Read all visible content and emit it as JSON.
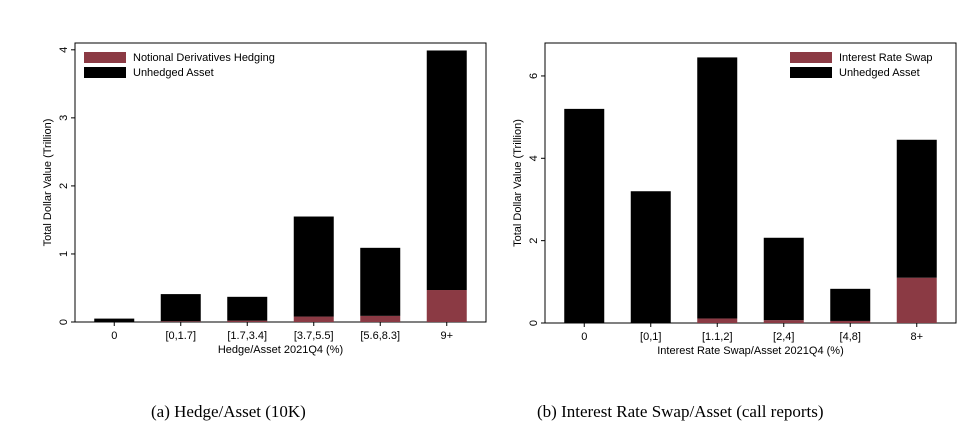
{
  "chart_data": [
    {
      "type": "bar",
      "stacked": true,
      "caption": "(a) Hedge/Asset (10K)",
      "xlabel": "Hedge/Asset 2021Q4 (%)",
      "ylabel": "Total Dollar Value (Trillion)",
      "ylim": [
        0,
        4.1
      ],
      "yticks": [
        0,
        1,
        2,
        3,
        4
      ],
      "grid": false,
      "legend_position": "top-left",
      "categories": [
        "0",
        "[0,1.7]",
        "[1.7,3.4]",
        "[3.7,5.5]",
        "[5.6,8.3]",
        "9+"
      ],
      "series": [
        {
          "name": "Notional Derivatives Hedging",
          "color": "#8b3a44",
          "values": [
            0.0,
            0.01,
            0.02,
            0.08,
            0.09,
            0.47
          ]
        },
        {
          "name": "Unhedged Asset",
          "color": "#000000",
          "values": [
            0.05,
            0.4,
            0.35,
            1.47,
            1.0,
            3.52
          ]
        }
      ]
    },
    {
      "type": "bar",
      "stacked": true,
      "caption": "(b) Interest Rate Swap/Asset (call reports)",
      "xlabel": "Interest Rate Swap/Asset 2021Q4 (%)",
      "ylabel": "Total Dollar Value (Trillion)",
      "ylim": [
        0,
        6.8
      ],
      "yticks": [
        0,
        2,
        4,
        6
      ],
      "grid": false,
      "legend_position": "top-right",
      "categories": [
        "0",
        "[0,1]",
        "[1.1,2]",
        "[2,4]",
        "[4,8]",
        "8+"
      ],
      "series": [
        {
          "name": "Interest Rate Swap",
          "color": "#8b3a44",
          "values": [
            0.0,
            0.0,
            0.11,
            0.07,
            0.05,
            1.1
          ]
        },
        {
          "name": "Unhedged Asset",
          "color": "#000000",
          "values": [
            5.2,
            3.2,
            6.34,
            2.0,
            0.78,
            3.35
          ]
        }
      ]
    }
  ]
}
